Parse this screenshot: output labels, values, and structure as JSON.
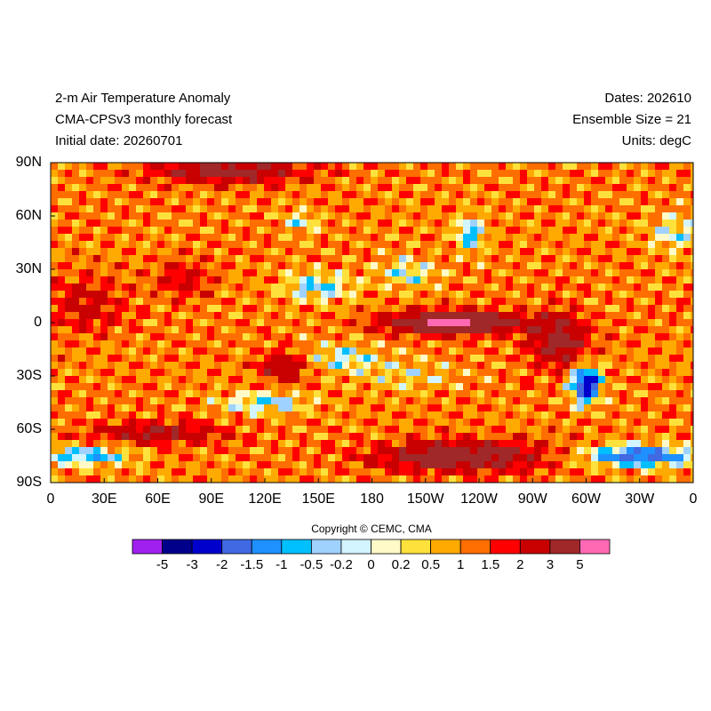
{
  "header": {
    "title": "2-m Air Temperature Anomaly",
    "subtitle": "CMA-CPSv3 monthly forecast",
    "initial_date": "Initial date: 20260701",
    "dates": "Dates: 202610",
    "ensemble_size": "Ensemble Size = 21",
    "units": "Units: degC"
  },
  "map": {
    "xlim": [
      0,
      360
    ],
    "ylim": [
      -90,
      90
    ],
    "xticks": [
      0,
      {
        "value": 30,
        "label": "30E"
      },
      {
        "value": 60,
        "label": "60E"
      },
      {
        "value": 90,
        "label": "90E"
      },
      {
        "value": 120,
        "label": "120E"
      },
      {
        "value": 150,
        "label": "150E"
      },
      180,
      {
        "value": 210,
        "label": "150W"
      },
      {
        "value": 240,
        "label": "120W"
      },
      {
        "value": 270,
        "label": "90W"
      },
      {
        "value": 300,
        "label": "60W"
      },
      {
        "value": 330,
        "label": "30W"
      },
      {
        "value": 360,
        "label": "0"
      }
    ],
    "yticks": [
      {
        "value": 90,
        "label": "90N"
      },
      {
        "value": 60,
        "label": "60N"
      },
      {
        "value": 30,
        "label": "30N"
      },
      0,
      {
        "value": -30,
        "label": "30S"
      },
      {
        "value": -60,
        "label": "60S"
      },
      {
        "value": -90,
        "label": "90S"
      }
    ]
  },
  "colorbar": {
    "copyright": "Copyright © CEMC, CMA",
    "ticks": [
      -5,
      -3,
      -2,
      -1.5,
      -1,
      -0.5,
      -0.2,
      0,
      0.2,
      0.5,
      1,
      1.5,
      2,
      3,
      5
    ],
    "colors": [
      "#a020f0",
      "#00008b",
      "#0000cd",
      "#4169e1",
      "#1e90ff",
      "#00bfff",
      "#a0d2ff",
      "#d2f5ff",
      "#fffac8",
      "#ffe13c",
      "#ffaa00",
      "#ff6e00",
      "#ff0000",
      "#c80000",
      "#a02828",
      "#ff69b4"
    ]
  }
}
